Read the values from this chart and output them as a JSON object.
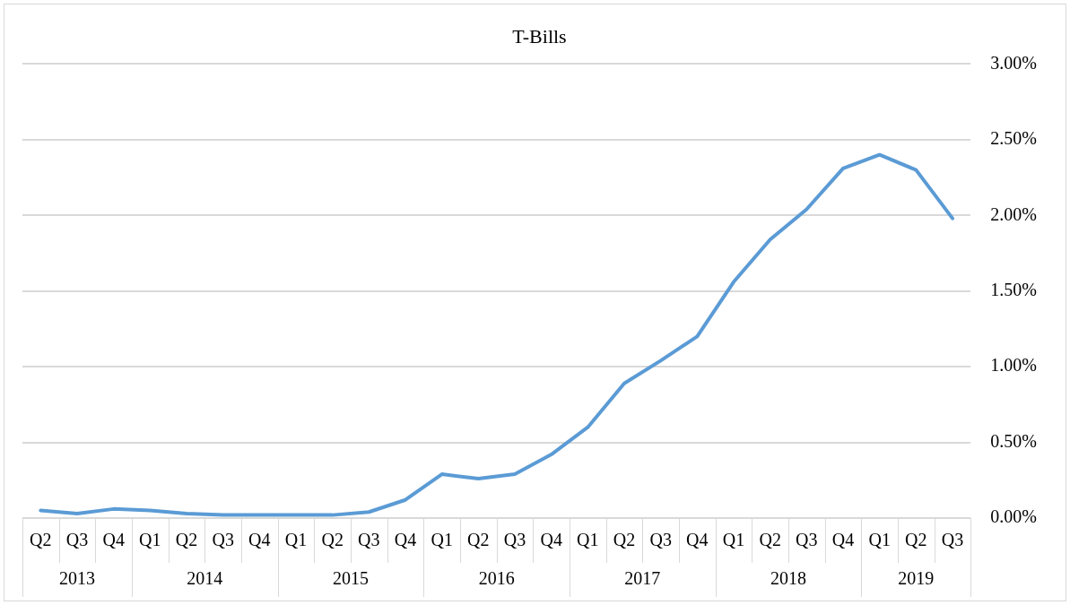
{
  "chart_data": {
    "type": "line",
    "title": "T-Bills",
    "categories": [
      "Q2",
      "Q3",
      "Q4",
      "Q1",
      "Q2",
      "Q3",
      "Q4",
      "Q1",
      "Q2",
      "Q3",
      "Q4",
      "Q1",
      "Q2",
      "Q3",
      "Q4",
      "Q1",
      "Q2",
      "Q3",
      "Q4",
      "Q1",
      "Q2",
      "Q3",
      "Q4",
      "Q1",
      "Q2",
      "Q3"
    ],
    "series": [
      {
        "color": "#5b9bd5",
        "values": [
          0.05,
          0.03,
          0.06,
          0.05,
          0.03,
          0.02,
          0.02,
          0.02,
          0.02,
          0.04,
          0.12,
          0.29,
          0.26,
          0.29,
          0.42,
          0.6,
          0.89,
          1.04,
          1.2,
          1.56,
          1.84,
          2.04,
          2.31,
          2.4,
          2.3,
          1.98
        ]
      }
    ],
    "annotations": [
      "2013",
      "2014",
      "2015",
      "2016",
      "2017",
      "2018",
      "2019"
    ],
    "ylim": [
      0,
      3
    ],
    "yticks": [
      {
        "value": 0,
        "label": "0.00%"
      },
      {
        "value": 0.5,
        "label": "0.50%"
      },
      {
        "value": 1,
        "label": "1.00%"
      },
      {
        "value": 1.5,
        "label": "1.50%"
      },
      {
        "value": 2,
        "label": "2.00%"
      },
      {
        "value": 2.5,
        "label": "2.50%"
      },
      {
        "value": 3,
        "label": "3.00%"
      }
    ],
    "grid": "y",
    "legend": false,
    "marker": "none",
    "line_style": "solid"
  }
}
